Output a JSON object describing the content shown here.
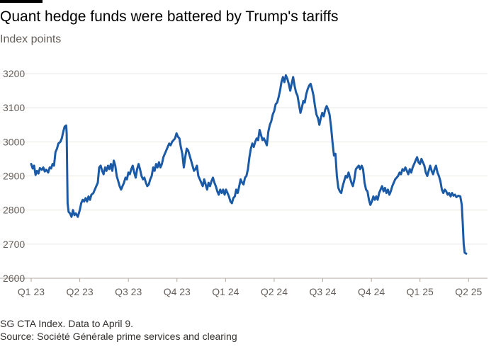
{
  "title": "Quant hedge funds were battered by Trump's tariffs",
  "subtitle": "Index points",
  "footnote": "SG CTA Index. Data to April 9.",
  "source": "Source: Société Générale prime services and clearing",
  "colors": {
    "line": "#1b5aa6",
    "grid": "#ebe7e3",
    "axis": "#66605c",
    "text": "#33302e"
  },
  "chart_data": {
    "type": "line",
    "title": "Quant hedge funds were battered by Trump's tariffs",
    "ylabel": "Index points",
    "xlabel": "",
    "ylim": [
      2600,
      3200
    ],
    "yticks": [
      2600,
      2700,
      2800,
      2900,
      3000,
      3100,
      3200
    ],
    "xlim": [
      0,
      9.2
    ],
    "xticks": [
      {
        "label": "Q1 23",
        "x": 0
      },
      {
        "label": "Q2 23",
        "x": 1
      },
      {
        "label": "Q3 23",
        "x": 2
      },
      {
        "label": "Q4 23",
        "x": 3
      },
      {
        "label": "Q1 24",
        "x": 4
      },
      {
        "label": "Q2 24",
        "x": 5
      },
      {
        "label": "Q3 24",
        "x": 6
      },
      {
        "label": "Q4 24",
        "x": 7
      },
      {
        "label": "Q1 25",
        "x": 8
      },
      {
        "label": "Q2 25",
        "x": 9
      }
    ],
    "grid": true,
    "series": [
      {
        "name": "SG CTA Index",
        "points": [
          [
            0.0,
            2935
          ],
          [
            0.03,
            2922
          ],
          [
            0.06,
            2930
          ],
          [
            0.09,
            2903
          ],
          [
            0.12,
            2915
          ],
          [
            0.15,
            2907
          ],
          [
            0.18,
            2923
          ],
          [
            0.22,
            2918
          ],
          [
            0.25,
            2925
          ],
          [
            0.28,
            2913
          ],
          [
            0.31,
            2918
          ],
          [
            0.35,
            2910
          ],
          [
            0.38,
            2925
          ],
          [
            0.41,
            2922
          ],
          [
            0.44,
            2935
          ],
          [
            0.47,
            2930
          ],
          [
            0.5,
            2970
          ],
          [
            0.53,
            2980
          ],
          [
            0.56,
            2995
          ],
          [
            0.6,
            3000
          ],
          [
            0.63,
            3010
          ],
          [
            0.66,
            3030
          ],
          [
            0.69,
            3045
          ],
          [
            0.72,
            3048
          ],
          [
            0.73,
            3025
          ],
          [
            0.75,
            2820
          ],
          [
            0.77,
            2795
          ],
          [
            0.8,
            2790
          ],
          [
            0.83,
            2780
          ],
          [
            0.86,
            2800
          ],
          [
            0.89,
            2785
          ],
          [
            0.92,
            2790
          ],
          [
            0.96,
            2780
          ],
          [
            1.0,
            2800
          ],
          [
            1.03,
            2820
          ],
          [
            1.06,
            2830
          ],
          [
            1.09,
            2825
          ],
          [
            1.12,
            2835
          ],
          [
            1.15,
            2825
          ],
          [
            1.18,
            2840
          ],
          [
            1.21,
            2830
          ],
          [
            1.24,
            2845
          ],
          [
            1.28,
            2850
          ],
          [
            1.31,
            2860
          ],
          [
            1.34,
            2870
          ],
          [
            1.37,
            2880
          ],
          [
            1.4,
            2925
          ],
          [
            1.43,
            2930
          ],
          [
            1.46,
            2915
          ],
          [
            1.49,
            2905
          ],
          [
            1.52,
            2925
          ],
          [
            1.55,
            2915
          ],
          [
            1.58,
            2930
          ],
          [
            1.61,
            2920
          ],
          [
            1.64,
            2935
          ],
          [
            1.67,
            2915
          ],
          [
            1.7,
            2945
          ],
          [
            1.73,
            2930
          ],
          [
            1.76,
            2900
          ],
          [
            1.79,
            2885
          ],
          [
            1.82,
            2870
          ],
          [
            1.85,
            2860
          ],
          [
            1.88,
            2870
          ],
          [
            1.91,
            2880
          ],
          [
            1.94,
            2895
          ],
          [
            1.97,
            2890
          ],
          [
            2.0,
            2910
          ],
          [
            2.03,
            2905
          ],
          [
            2.06,
            2920
          ],
          [
            2.09,
            2930
          ],
          [
            2.12,
            2910
          ],
          [
            2.15,
            2895
          ],
          [
            2.18,
            2920
          ],
          [
            2.21,
            2935
          ],
          [
            2.24,
            2920
          ],
          [
            2.27,
            2900
          ],
          [
            2.3,
            2890
          ],
          [
            2.33,
            2895
          ],
          [
            2.36,
            2880
          ],
          [
            2.39,
            2870
          ],
          [
            2.42,
            2875
          ],
          [
            2.45,
            2890
          ],
          [
            2.48,
            2900
          ],
          [
            2.51,
            2925
          ],
          [
            2.54,
            2915
          ],
          [
            2.57,
            2935
          ],
          [
            2.6,
            2925
          ],
          [
            2.63,
            2940
          ],
          [
            2.66,
            2925
          ],
          [
            2.69,
            2935
          ],
          [
            2.72,
            2955
          ],
          [
            2.75,
            2965
          ],
          [
            2.78,
            2975
          ],
          [
            2.81,
            2985
          ],
          [
            2.84,
            2995
          ],
          [
            2.87,
            2990
          ],
          [
            2.9,
            3000
          ],
          [
            2.93,
            3005
          ],
          [
            2.96,
            3010
          ],
          [
            2.99,
            3025
          ],
          [
            3.02,
            3015
          ],
          [
            3.05,
            3010
          ],
          [
            3.08,
            2985
          ],
          [
            3.11,
            2965
          ],
          [
            3.14,
            2925
          ],
          [
            3.17,
            2955
          ],
          [
            3.2,
            2980
          ],
          [
            3.23,
            2975
          ],
          [
            3.26,
            2960
          ],
          [
            3.29,
            2945
          ],
          [
            3.32,
            2930
          ],
          [
            3.35,
            2915
          ],
          [
            3.38,
            2920
          ],
          [
            3.41,
            2930
          ],
          [
            3.44,
            2900
          ],
          [
            3.47,
            2890
          ],
          [
            3.5,
            2880
          ],
          [
            3.53,
            2870
          ],
          [
            3.56,
            2890
          ],
          [
            3.59,
            2875
          ],
          [
            3.62,
            2860
          ],
          [
            3.65,
            2880
          ],
          [
            3.68,
            2870
          ],
          [
            3.71,
            2885
          ],
          [
            3.74,
            2895
          ],
          [
            3.77,
            2880
          ],
          [
            3.8,
            2870
          ],
          [
            3.83,
            2855
          ],
          [
            3.86,
            2845
          ],
          [
            3.89,
            2860
          ],
          [
            3.92,
            2850
          ],
          [
            3.95,
            2860
          ],
          [
            3.98,
            2845
          ],
          [
            4.01,
            2860
          ],
          [
            4.04,
            2850
          ],
          [
            4.07,
            2840
          ],
          [
            4.1,
            2825
          ],
          [
            4.13,
            2820
          ],
          [
            4.16,
            2835
          ],
          [
            4.19,
            2840
          ],
          [
            4.22,
            2860
          ],
          [
            4.25,
            2850
          ],
          [
            4.28,
            2870
          ],
          [
            4.31,
            2890
          ],
          [
            4.34,
            2880
          ],
          [
            4.37,
            2875
          ],
          [
            4.4,
            2895
          ],
          [
            4.43,
            2900
          ],
          [
            4.46,
            2920
          ],
          [
            4.49,
            2955
          ],
          [
            4.52,
            2980
          ],
          [
            4.55,
            2995
          ],
          [
            4.58,
            2985
          ],
          [
            4.61,
            3000
          ],
          [
            4.64,
            3010
          ],
          [
            4.67,
            3005
          ],
          [
            4.7,
            3035
          ],
          [
            4.73,
            3020
          ],
          [
            4.76,
            3005
          ],
          [
            4.79,
            3010
          ],
          [
            4.82,
            3000
          ],
          [
            4.85,
            2990
          ],
          [
            4.88,
            3030
          ],
          [
            4.91,
            3050
          ],
          [
            4.94,
            3060
          ],
          [
            4.97,
            3080
          ],
          [
            5.0,
            3090
          ],
          [
            5.03,
            3110
          ],
          [
            5.06,
            3115
          ],
          [
            5.09,
            3130
          ],
          [
            5.12,
            3150
          ],
          [
            5.15,
            3175
          ],
          [
            5.18,
            3190
          ],
          [
            5.21,
            3175
          ],
          [
            5.24,
            3195
          ],
          [
            5.27,
            3185
          ],
          [
            5.3,
            3170
          ],
          [
            5.33,
            3150
          ],
          [
            5.36,
            3170
          ],
          [
            5.39,
            3190
          ],
          [
            5.42,
            3165
          ],
          [
            5.45,
            3145
          ],
          [
            5.48,
            3135
          ],
          [
            5.51,
            3110
          ],
          [
            5.54,
            3085
          ],
          [
            5.57,
            3100
          ],
          [
            5.6,
            3120
          ],
          [
            5.63,
            3115
          ],
          [
            5.66,
            3140
          ],
          [
            5.69,
            3155
          ],
          [
            5.72,
            3165
          ],
          [
            5.75,
            3170
          ],
          [
            5.78,
            3155
          ],
          [
            5.81,
            3135
          ],
          [
            5.84,
            3105
          ],
          [
            5.87,
            3080
          ],
          [
            5.9,
            3070
          ],
          [
            5.93,
            3050
          ],
          [
            5.96,
            3070
          ],
          [
            5.99,
            3085
          ],
          [
            6.02,
            3075
          ],
          [
            6.05,
            3095
          ],
          [
            6.08,
            3105
          ],
          [
            6.11,
            3095
          ],
          [
            6.14,
            3080
          ],
          [
            6.17,
            3045
          ],
          [
            6.2,
            3000
          ],
          [
            6.23,
            2960
          ],
          [
            6.26,
            2965
          ],
          [
            6.29,
            2900
          ],
          [
            6.32,
            2865
          ],
          [
            6.35,
            2855
          ],
          [
            6.38,
            2850
          ],
          [
            6.41,
            2870
          ],
          [
            6.44,
            2885
          ],
          [
            6.47,
            2900
          ],
          [
            6.5,
            2895
          ],
          [
            6.53,
            2910
          ],
          [
            6.56,
            2895
          ],
          [
            6.59,
            2880
          ],
          [
            6.62,
            2870
          ],
          [
            6.65,
            2890
          ],
          [
            6.68,
            2920
          ],
          [
            6.71,
            2925
          ],
          [
            6.74,
            2930
          ],
          [
            6.77,
            2920
          ],
          [
            6.8,
            2930
          ],
          [
            6.83,
            2920
          ],
          [
            6.86,
            2880
          ],
          [
            6.89,
            2860
          ],
          [
            6.92,
            2855
          ],
          [
            6.95,
            2830
          ],
          [
            6.98,
            2815
          ],
          [
            7.01,
            2825
          ],
          [
            7.04,
            2840
          ],
          [
            7.07,
            2830
          ],
          [
            7.1,
            2840
          ],
          [
            7.13,
            2830
          ],
          [
            7.16,
            2850
          ],
          [
            7.19,
            2860
          ],
          [
            7.22,
            2870
          ],
          [
            7.25,
            2855
          ],
          [
            7.28,
            2865
          ],
          [
            7.31,
            2850
          ],
          [
            7.34,
            2860
          ],
          [
            7.37,
            2845
          ],
          [
            7.4,
            2855
          ],
          [
            7.43,
            2870
          ],
          [
            7.46,
            2880
          ],
          [
            7.49,
            2890
          ],
          [
            7.52,
            2895
          ],
          [
            7.55,
            2900
          ],
          [
            7.58,
            2910
          ],
          [
            7.61,
            2905
          ],
          [
            7.64,
            2920
          ],
          [
            7.67,
            2915
          ],
          [
            7.7,
            2925
          ],
          [
            7.73,
            2915
          ],
          [
            7.76,
            2905
          ],
          [
            7.79,
            2920
          ],
          [
            7.82,
            2910
          ],
          [
            7.85,
            2925
          ],
          [
            7.88,
            2935
          ],
          [
            7.91,
            2945
          ],
          [
            7.94,
            2955
          ],
          [
            7.97,
            2940
          ],
          [
            8.0,
            2935
          ],
          [
            8.03,
            2950
          ],
          [
            8.06,
            2940
          ],
          [
            8.09,
            2930
          ],
          [
            8.12,
            2910
          ],
          [
            8.15,
            2900
          ],
          [
            8.18,
            2915
          ],
          [
            8.21,
            2930
          ],
          [
            8.24,
            2915
          ],
          [
            8.27,
            2905
          ],
          [
            8.3,
            2920
          ],
          [
            8.33,
            2930
          ],
          [
            8.36,
            2910
          ],
          [
            8.39,
            2900
          ],
          [
            8.42,
            2885
          ],
          [
            8.45,
            2860
          ],
          [
            8.48,
            2850
          ],
          [
            8.51,
            2860
          ],
          [
            8.54,
            2855
          ],
          [
            8.57,
            2845
          ],
          [
            8.6,
            2850
          ],
          [
            8.63,
            2840
          ],
          [
            8.66,
            2850
          ],
          [
            8.69,
            2842
          ],
          [
            8.72,
            2845
          ],
          [
            8.75,
            2838
          ],
          [
            8.79,
            2842
          ],
          [
            8.83,
            2840
          ],
          [
            8.86,
            2815
          ],
          [
            8.88,
            2760
          ],
          [
            8.9,
            2700
          ],
          [
            8.92,
            2675
          ],
          [
            8.95,
            2672
          ]
        ]
      }
    ]
  }
}
